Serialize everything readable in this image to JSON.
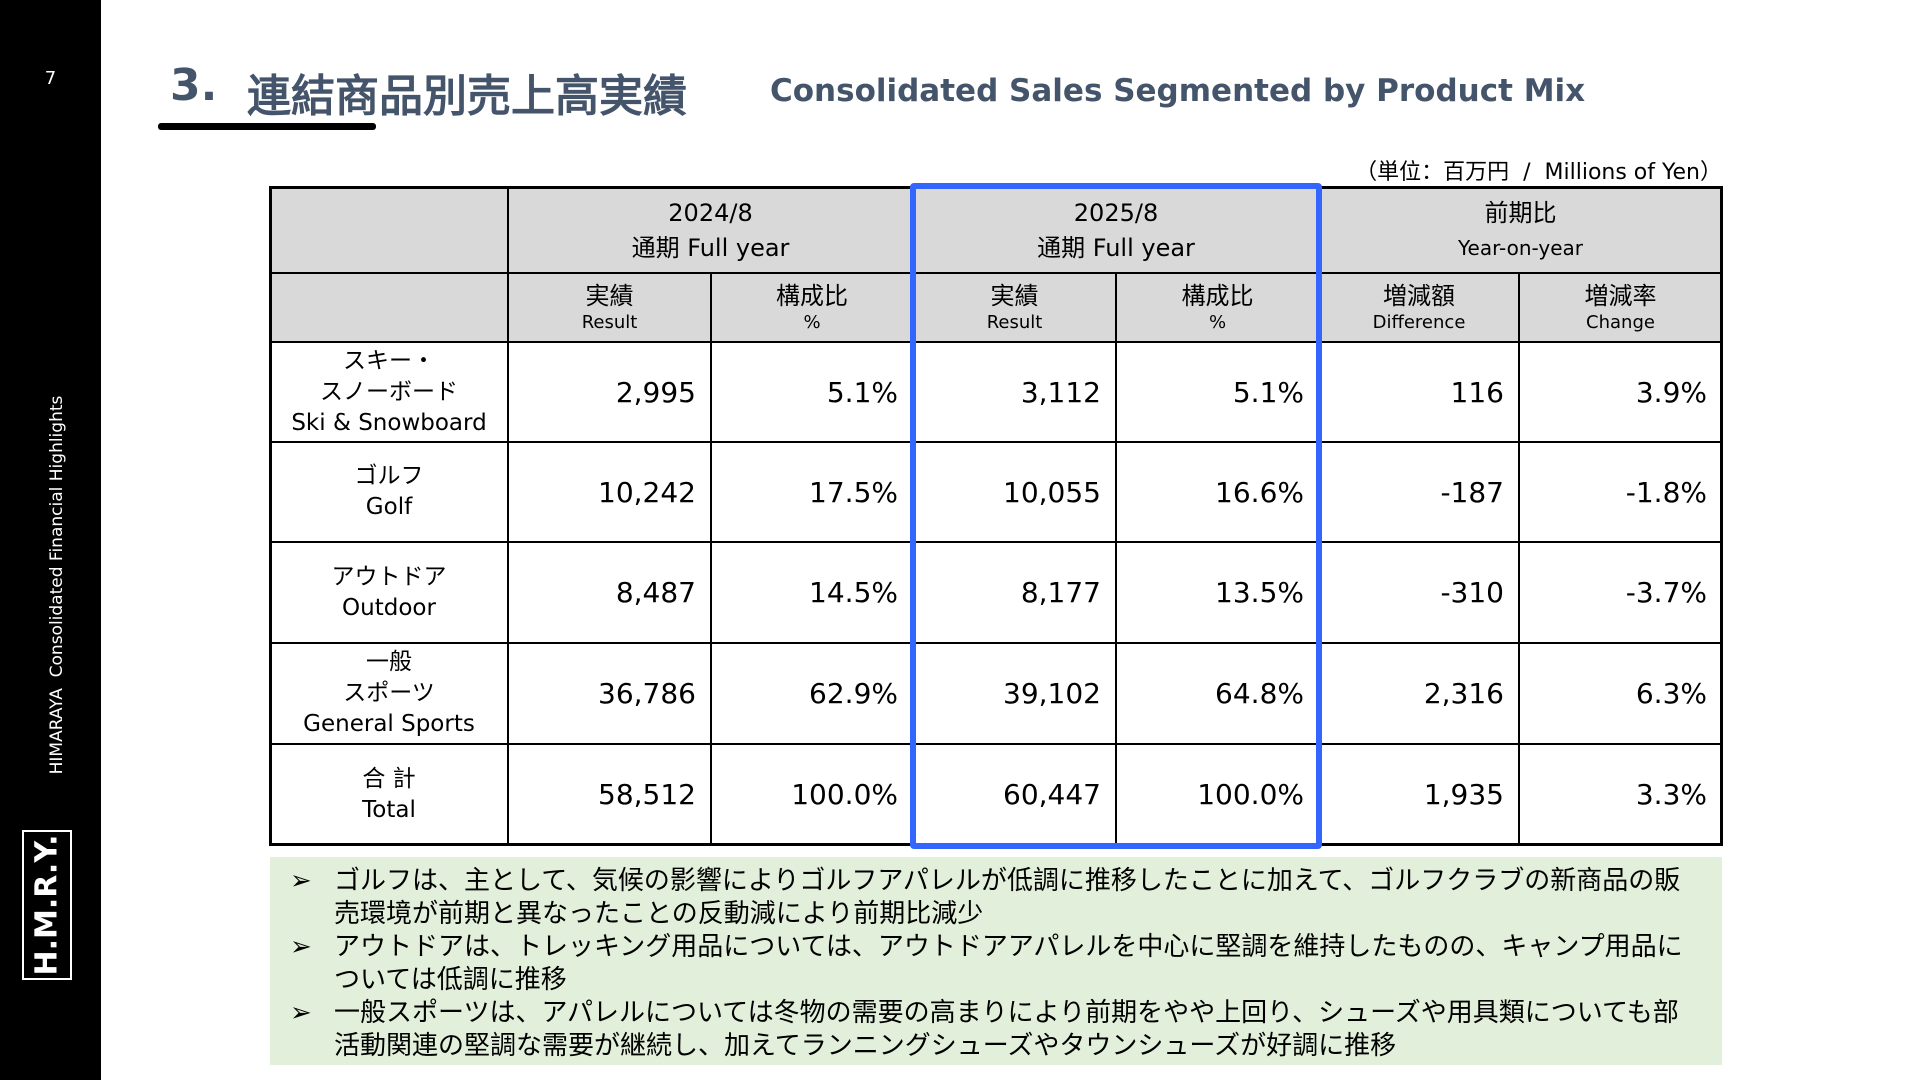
{
  "page_number": "7",
  "sidebar": {
    "caption": "HIMARAYA  Consolidated Financial Highlights",
    "logo": "H.M.R.Y."
  },
  "header": {
    "number": "3.",
    "title": "連結商品別売上高実績",
    "subtitle": "Consolidated Sales Segmented by Product Mix"
  },
  "unit": "（単位：百万円  /  Millions of Yen）",
  "table": {
    "groups": [
      {
        "title": "2024/8",
        "subtitle": "通期 Full year"
      },
      {
        "title": "2025/8",
        "subtitle": "通期 Full year"
      },
      {
        "title": "前期比",
        "subtitle": "Year-on-year"
      }
    ],
    "columns": [
      {
        "ja": "実績",
        "en": "Result"
      },
      {
        "ja": "構成比",
        "en": "%"
      },
      {
        "ja": "実績",
        "en": "Result"
      },
      {
        "ja": "構成比",
        "en": "%"
      },
      {
        "ja": "増減額",
        "en": "Difference"
      },
      {
        "ja": "増減率",
        "en": "Change"
      }
    ],
    "rows": [
      {
        "label": [
          "スキー・",
          "スノーボード",
          "Ski & Snowboard"
        ],
        "values": [
          "2,995",
          "5.1%",
          "3,112",
          "5.1%",
          "116",
          "3.9%"
        ]
      },
      {
        "label": [
          "ゴルフ",
          "Golf"
        ],
        "values": [
          "10,242",
          "17.5%",
          "10,055",
          "16.6%",
          "-187",
          "-1.8%"
        ]
      },
      {
        "label": [
          "アウトドア",
          "Outdoor"
        ],
        "values": [
          "8,487",
          "14.5%",
          "8,177",
          "13.5%",
          "-310",
          "-3.7%"
        ]
      },
      {
        "label": [
          "一般",
          "スポーツ",
          "General Sports"
        ],
        "values": [
          "36,786",
          "62.9%",
          "39,102",
          "64.8%",
          "2,316",
          "6.3%"
        ]
      },
      {
        "label": [
          "合 計",
          "Total"
        ],
        "values": [
          "58,512",
          "100.0%",
          "60,447",
          "100.0%",
          "1,935",
          "3.3%"
        ]
      }
    ]
  },
  "notes": [
    "ゴルフは、主として、気候の影響によりゴルフアパレルが低調に推移したことに加えて、ゴルフクラブの新商品の販売環境が前期と異なったことの反動減により前期比減少",
    "アウトドアは、トレッキング用品については、アウトドアアパレルを中心に堅調を維持したものの、キャンプ用品については低調に推移",
    "一般スポーツは、アパレルについては冬物の需要の高まりにより前期をやや上回り、シューズや用具類についても部活動関連の堅調な需要が継続し、加えてランニングシューズやタウンシューズが好調に推移"
  ]
}
